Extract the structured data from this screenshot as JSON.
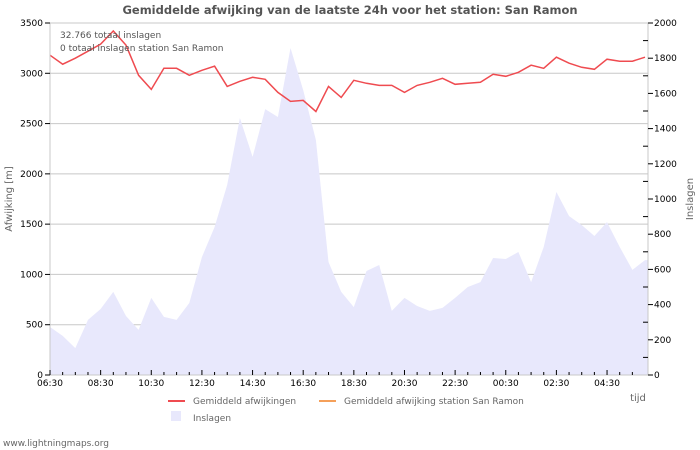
{
  "title": "Gemiddelde afwijking van de laatste 24h voor het station: San Ramon",
  "info_lines": [
    "32.766 totaal inslagen",
    "0 totaal inslagen station San Ramon"
  ],
  "footer": "www.lightningmaps.org",
  "colors": {
    "afwijking": "#ef4b50",
    "station": "#f5a05a",
    "inslagen_fill": "#e8e8fc",
    "grid": "#c8c8c8",
    "axis": "#bbbbbb"
  },
  "legend": [
    {
      "label": "Gemiddeld afwijkingen",
      "type": "line",
      "color": "#ef4b50"
    },
    {
      "label": "Gemiddeld afwijking station San Ramon",
      "type": "line",
      "color": "#f5a05a"
    },
    {
      "label": "Inslagen",
      "type": "box",
      "color": "#e8e8fc"
    }
  ],
  "chart_data": {
    "type": "line",
    "title": "Gemiddelde afwijking van de laatste 24h voor het station: San Ramon",
    "xlabel": "tijd",
    "ylabel": "Afwijking  [m]",
    "y2label": "Inslagen",
    "ylim": [
      0,
      3500
    ],
    "y2lim": [
      0,
      2000
    ],
    "yticks": [
      0,
      500,
      1000,
      1500,
      2000,
      2500,
      3000,
      3500
    ],
    "y2ticks": [
      0,
      200,
      400,
      600,
      800,
      1000,
      1200,
      1400,
      1600,
      1800,
      2000
    ],
    "xtick_labels": [
      "06:30",
      "08:30",
      "10:30",
      "12:30",
      "14:30",
      "16:30",
      "18:30",
      "20:30",
      "22:30",
      "00:30",
      "02:30",
      "04:30"
    ],
    "grid": true,
    "legend_position": "bottom",
    "x": [
      "06:30",
      "07:00",
      "07:30",
      "08:00",
      "08:30",
      "09:00",
      "09:30",
      "10:00",
      "10:30",
      "11:00",
      "11:30",
      "12:00",
      "12:30",
      "13:00",
      "13:30",
      "14:00",
      "14:30",
      "15:00",
      "15:30",
      "16:00",
      "16:30",
      "17:00",
      "17:30",
      "18:00",
      "18:30",
      "19:00",
      "19:30",
      "20:00",
      "20:30",
      "21:00",
      "21:30",
      "22:00",
      "22:30",
      "23:00",
      "23:30",
      "00:00",
      "00:30",
      "01:00",
      "01:30",
      "02:00",
      "02:30",
      "03:00",
      "03:30",
      "04:00",
      "04:30",
      "05:00",
      "05:30",
      "06:00"
    ],
    "series": [
      {
        "name": "Gemiddeld afwijkingen",
        "axis": "left",
        "type": "line",
        "values": [
          3180,
          3090,
          3150,
          3220,
          3290,
          3420,
          3280,
          2980,
          2840,
          3050,
          3050,
          2980,
          3030,
          3070,
          2870,
          2920,
          2960,
          2940,
          2810,
          2720,
          2730,
          2620,
          2870,
          2760,
          2930,
          2900,
          2880,
          2880,
          2810,
          2880,
          2910,
          2950,
          2890,
          2900,
          2910,
          2990,
          2970,
          3010,
          3080,
          3050,
          3160,
          3100,
          3060,
          3040,
          3140,
          3120,
          3120,
          3160
        ]
      },
      {
        "name": "Gemiddeld afwijking station San Ramon",
        "axis": "left",
        "type": "line",
        "values": []
      },
      {
        "name": "Inslagen",
        "axis": "right",
        "type": "area",
        "values": [
          273,
          222,
          153,
          313,
          375,
          472,
          335,
          256,
          438,
          330,
          313,
          409,
          670,
          841,
          1080,
          1460,
          1239,
          1511,
          1466,
          1858,
          1619,
          1335,
          642,
          472,
          386,
          591,
          625,
          364,
          438,
          392,
          364,
          381,
          438,
          500,
          528,
          665,
          659,
          699,
          528,
          727,
          1040,
          903,
          852,
          790,
          869,
          727,
          597,
          653
        ]
      }
    ]
  }
}
